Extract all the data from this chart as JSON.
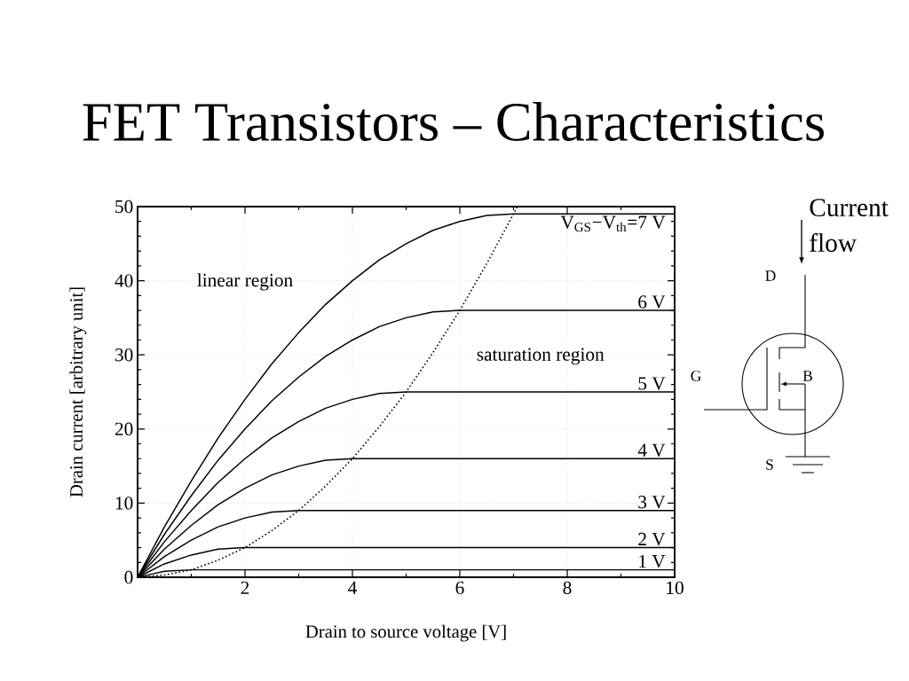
{
  "chart_data": {
    "type": "line",
    "title": "FET Transistors – Characteristics",
    "xlabel": "Drain to source voltage [V]",
    "ylabel": "Drain current [arbitrary unit]",
    "xlim": [
      0,
      10
    ],
    "ylim": [
      0,
      50
    ],
    "xticks": [
      {
        "value": 0,
        "label": null
      },
      2,
      4,
      6,
      8,
      10
    ],
    "yticks": [
      0,
      10,
      20,
      30,
      40,
      50
    ],
    "grid": true,
    "marker": "none",
    "line_style": "solid",
    "legend": "right",
    "series": [
      {
        "name": "V$_{GS}$−V$_{th}$=7 V",
        "color": "#000000",
        "x": [
          0,
          0.5,
          1,
          1.5,
          2,
          2.5,
          3,
          3.5,
          4,
          4.5,
          5,
          5.5,
          6,
          6.5,
          7,
          10
        ],
        "values": [
          0,
          6.8,
          13,
          18.8,
          24,
          28.8,
          33,
          36.8,
          40,
          42.8,
          45,
          46.8,
          48,
          48.8,
          49,
          49
        ]
      },
      {
        "name": "6 V",
        "color": "#000000",
        "x": [
          0,
          0.5,
          1,
          1.5,
          2,
          2.5,
          3,
          3.5,
          4,
          4.5,
          5,
          5.5,
          6,
          10
        ],
        "values": [
          0,
          5.8,
          11,
          15.8,
          20,
          23.8,
          27,
          29.8,
          32,
          33.8,
          35,
          35.8,
          36,
          36
        ]
      },
      {
        "name": "5 V",
        "color": "#000000",
        "x": [
          0,
          0.5,
          1,
          1.5,
          2,
          2.5,
          3,
          3.5,
          4,
          4.5,
          5,
          10
        ],
        "values": [
          0,
          4.8,
          9,
          12.8,
          16,
          18.8,
          21,
          22.8,
          24,
          24.8,
          25,
          25
        ]
      },
      {
        "name": "4 V",
        "color": "#000000",
        "x": [
          0,
          0.5,
          1,
          1.5,
          2,
          2.5,
          3,
          3.5,
          4,
          10
        ],
        "values": [
          0,
          3.8,
          7,
          9.8,
          12,
          13.8,
          15,
          15.8,
          16,
          16
        ]
      },
      {
        "name": "3 V",
        "color": "#000000",
        "x": [
          0,
          0.5,
          1,
          1.5,
          2,
          2.5,
          3,
          10
        ],
        "values": [
          0,
          2.8,
          5,
          6.8,
          8,
          8.8,
          9,
          9
        ]
      },
      {
        "name": "2 V",
        "color": "#000000",
        "x": [
          0,
          0.5,
          1,
          1.5,
          2,
          10
        ],
        "values": [
          0,
          1.8,
          3,
          3.8,
          4,
          4
        ]
      },
      {
        "name": "1 V",
        "color": "#000000",
        "x": [
          0,
          0.25,
          0.5,
          0.75,
          1,
          10
        ],
        "values": [
          0,
          0.4,
          0.8,
          0.9,
          1,
          1
        ]
      },
      {
        "color": "#000000",
        "line_style": "dotted",
        "x": [
          0,
          0.5,
          1,
          1.5,
          2,
          2.5,
          3,
          3.5,
          4,
          4.5,
          5,
          5.5,
          6,
          6.5,
          7,
          7.07
        ],
        "values": [
          0,
          0.3,
          1,
          2.3,
          4,
          6.3,
          9,
          12.3,
          16,
          20.3,
          25,
          30.3,
          36,
          42.3,
          49,
          50
        ]
      }
    ],
    "annotations": [
      "linear region",
      "saturation region",
      "Current flow",
      "D",
      "G",
      "B",
      "S"
    ]
  }
}
